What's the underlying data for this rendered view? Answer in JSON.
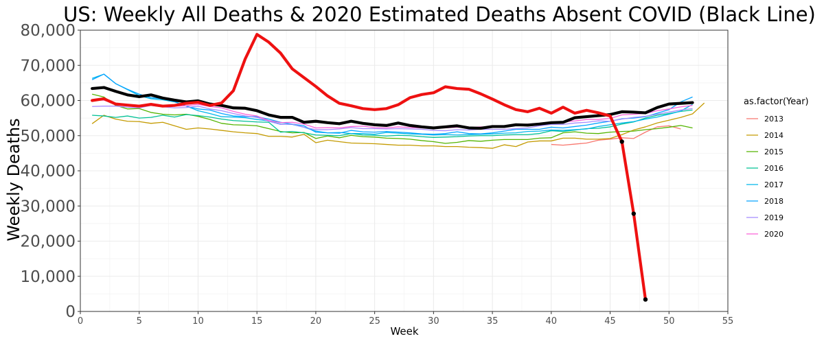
{
  "chart_data": {
    "type": "line",
    "title": "US: Weekly All Deaths & 2020 Estimated Deaths Absent COVID (Black Line)",
    "xlabel": "Week",
    "ylabel": "Weekly Deaths",
    "xlim": [
      0,
      55
    ],
    "ylim": [
      0,
      80000
    ],
    "xticks": [
      0,
      5,
      10,
      15,
      20,
      25,
      30,
      35,
      40,
      45,
      50,
      55
    ],
    "yticks": [
      0,
      10000,
      20000,
      30000,
      40000,
      50000,
      60000,
      70000,
      80000
    ],
    "ytick_labels": [
      "0",
      "10,000",
      "20,000",
      "30,000",
      "40,000",
      "50,000",
      "60,000",
      "70,000",
      "80,000"
    ],
    "grid": true,
    "legend": {
      "title": "as.factor(Year)",
      "position": "right"
    },
    "series": [
      {
        "name": "2013",
        "color": "#F8766D",
        "x_start": 40,
        "values": [
          47500,
          47300,
          47600,
          47900,
          48700,
          49000,
          49400,
          49200,
          51000,
          52500,
          52800,
          51900
        ]
      },
      {
        "name": "2014",
        "color": "#C49A00",
        "x_start": 1,
        "values": [
          53400,
          55800,
          54700,
          54100,
          54000,
          53500,
          53800,
          52800,
          51800,
          52200,
          51900,
          51500,
          51100,
          50800,
          50600,
          49800,
          49800,
          49600,
          50400,
          48000,
          48700,
          48300,
          47900,
          47800,
          47700,
          47500,
          47300,
          47300,
          47100,
          47100,
          46900,
          46900,
          46700,
          46600,
          46400,
          47400,
          46900,
          48200,
          48500,
          48500,
          49300,
          49300,
          49000,
          49000,
          49200,
          50300,
          51600,
          52500,
          53600,
          54400,
          55200,
          56200,
          59300
        ]
      },
      {
        "name": "2015",
        "color": "#53B400",
        "x_start": 1,
        "values": [
          61800,
          61000,
          58600,
          57600,
          57700,
          56600,
          56100,
          55900,
          56100,
          55500,
          54600,
          53500,
          53100,
          53000,
          52800,
          52000,
          51200,
          50800,
          50900,
          49200,
          49900,
          49400,
          50100,
          49700,
          49600,
          49300,
          49200,
          49000,
          48600,
          48300,
          47800,
          48100,
          48600,
          48400,
          48700,
          48900,
          48900,
          48900,
          49300,
          49400,
          50800,
          51100,
          50700,
          50600,
          51000,
          51200,
          51300,
          51700,
          52000,
          52400,
          52900,
          52200
        ]
      },
      {
        "name": "2016",
        "color": "#00C094",
        "x_start": 1,
        "values": [
          55800,
          55600,
          55200,
          55600,
          55000,
          55200,
          55800,
          55300,
          56000,
          55700,
          55300,
          54700,
          54300,
          54100,
          53900,
          53800,
          51000,
          51200,
          50800,
          50200,
          50100,
          50000,
          50600,
          50200,
          50100,
          49900,
          50100,
          50000,
          49700,
          49500,
          49600,
          49700,
          49900,
          50000,
          50000,
          50200,
          50300,
          50300,
          50600,
          51400,
          51200,
          51600,
          52000,
          52100,
          52500,
          53300,
          53900,
          55000,
          55800,
          56300,
          56900,
          57300
        ]
      },
      {
        "name": "2017",
        "color": "#00B6EB",
        "x_start": 1,
        "values": [
          66300,
          67500,
          64800,
          63100,
          61400,
          60500,
          60200,
          59600,
          58400,
          57100,
          56300,
          55400,
          55300,
          55100,
          54600,
          54200,
          53300,
          53200,
          52400,
          51300,
          50800,
          50900,
          50600,
          50600,
          50400,
          50900,
          50700,
          50500,
          50400,
          50200,
          50300,
          50200,
          50300,
          50400,
          50500,
          50700,
          50800,
          51200,
          51300,
          51600,
          51500,
          51700,
          51900,
          52600,
          53100,
          53600,
          54000,
          54700,
          55300,
          56100,
          57000,
          58900
        ]
      },
      {
        "name": "2018",
        "color": "#06A4FF",
        "x_start": 1,
        "values": [
          65900,
          67500,
          64800,
          63200,
          61800,
          60800,
          60500,
          59700,
          58400,
          57600,
          57300,
          56300,
          55600,
          55400,
          55400,
          54700,
          53800,
          53300,
          52800,
          51000,
          50800,
          50700,
          51500,
          51100,
          51000,
          51200,
          51000,
          50800,
          50500,
          50400,
          50600,
          51100,
          50600,
          50500,
          50800,
          51300,
          51800,
          51800,
          51800,
          52400,
          52200,
          52600,
          53000,
          53600,
          54100,
          54800,
          55000,
          55400,
          56400,
          57400,
          59600,
          61000
        ]
      },
      {
        "name": "2019",
        "color": "#A58AFF",
        "x_start": 1,
        "values": [
          58300,
          58400,
          58400,
          58100,
          57900,
          58600,
          58200,
          57900,
          58000,
          58400,
          57600,
          57100,
          56300,
          55600,
          55200,
          54100,
          53200,
          53300,
          52400,
          51700,
          51700,
          51900,
          52300,
          52000,
          52000,
          51900,
          52000,
          51900,
          51800,
          51500,
          51400,
          51700,
          51600,
          51800,
          51800,
          51800,
          52000,
          52200,
          52800,
          53200,
          53200,
          53600,
          53800,
          54200,
          54100,
          54700,
          55200,
          55500,
          56100,
          56700,
          57300,
          57700
        ]
      },
      {
        "name": "2020",
        "color": "#FB61D7",
        "x_start": 1,
        "values": [
          60100,
          60100,
          58900,
          58700,
          58200,
          59000,
          58600,
          58400,
          58500,
          58900,
          58300,
          57900,
          56900,
          56100,
          55600,
          54300,
          53700,
          53800,
          53300,
          52200,
          52300,
          52200,
          52600,
          52700,
          52300,
          52200,
          52500,
          52300,
          52200,
          52100,
          52200,
          52400,
          52300,
          52500,
          52400,
          52800,
          53000,
          53300,
          53500,
          53800,
          53900,
          54200,
          54600,
          54600,
          54900,
          55900,
          56100,
          56300,
          57100,
          57600,
          58200,
          58600
        ]
      }
    ],
    "overlays": [
      {
        "label": "2020 all deaths",
        "color": "#EE1111",
        "x_start": 1,
        "markers_from_x": 46,
        "values": [
          60000,
          60500,
          59000,
          58700,
          58400,
          58900,
          58400,
          58600,
          59200,
          59500,
          58600,
          59300,
          62800,
          71800,
          78800,
          76600,
          73500,
          69000,
          66500,
          64000,
          61300,
          59200,
          58500,
          57700,
          57400,
          57700,
          58800,
          60800,
          61700,
          62200,
          63900,
          63400,
          63200,
          61900,
          60400,
          58800,
          57400,
          56800,
          57800,
          56400,
          58100,
          56400,
          57200,
          56500,
          55600,
          48300,
          27800,
          3400
        ]
      },
      {
        "label": "2020 estimated deaths absent COVID",
        "color": "#000000",
        "x_start": 1,
        "values": [
          63400,
          63700,
          62600,
          61600,
          61100,
          61600,
          60700,
          60100,
          59600,
          59900,
          59000,
          58600,
          57900,
          57800,
          57100,
          55900,
          55200,
          55200,
          53800,
          54100,
          53700,
          53400,
          54100,
          53500,
          53100,
          52900,
          53600,
          52900,
          52500,
          52200,
          52500,
          52800,
          52200,
          52100,
          52600,
          52600,
          53100,
          53000,
          53300,
          53700,
          53800,
          55100,
          55400,
          55700,
          56000,
          56800,
          56700,
          56500,
          58000,
          59000,
          59200,
          59400
        ]
      }
    ]
  }
}
